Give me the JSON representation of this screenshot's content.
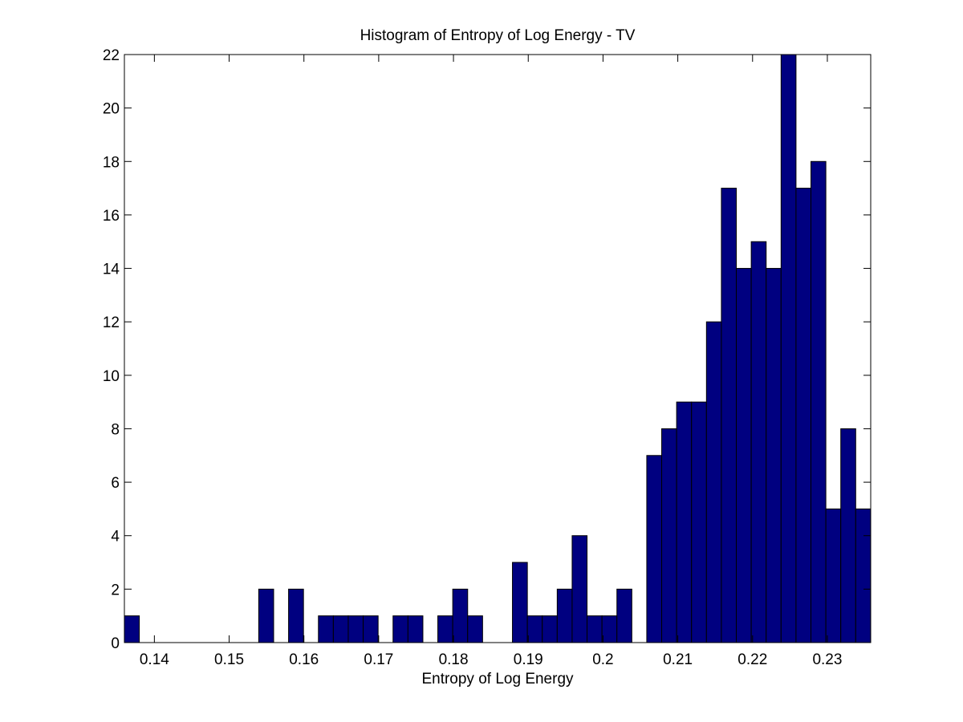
{
  "chart_data": {
    "type": "bar",
    "title": "Histogram of Entropy of Log Energy - TV",
    "xlabel": "Entropy of Log Energy",
    "ylabel": "",
    "xlim": [
      0.13599,
      0.2358
    ],
    "ylim": [
      0,
      22
    ],
    "grid": false,
    "x_ticks": [
      0.14,
      0.15,
      0.16,
      0.17,
      0.18,
      0.19,
      0.2,
      0.21,
      0.22,
      0.23
    ],
    "x_tick_labels": [
      "0.14",
      "0.15",
      "0.16",
      "0.17",
      "0.18",
      "0.19",
      "0.2",
      "0.21",
      "0.22",
      "0.23"
    ],
    "y_ticks": [
      0,
      2,
      4,
      6,
      8,
      10,
      12,
      14,
      16,
      18,
      20,
      22
    ],
    "y_tick_labels": [
      "0",
      "2",
      "4",
      "6",
      "8",
      "10",
      "12",
      "14",
      "16",
      "18",
      "20",
      "22"
    ],
    "bin_start": 0.13599,
    "bin_width": 0.001996,
    "counts": [
      1,
      0,
      0,
      0,
      0,
      0,
      0,
      0,
      0,
      2,
      0,
      2,
      0,
      1,
      1,
      1,
      1,
      0,
      1,
      1,
      0,
      1,
      2,
      1,
      0,
      0,
      3,
      1,
      1,
      2,
      4,
      1,
      1,
      2,
      0,
      7,
      8,
      9,
      9,
      12,
      17,
      14,
      15,
      14,
      22,
      17,
      18,
      5,
      8,
      5
    ],
    "bar_color": "#000080"
  }
}
